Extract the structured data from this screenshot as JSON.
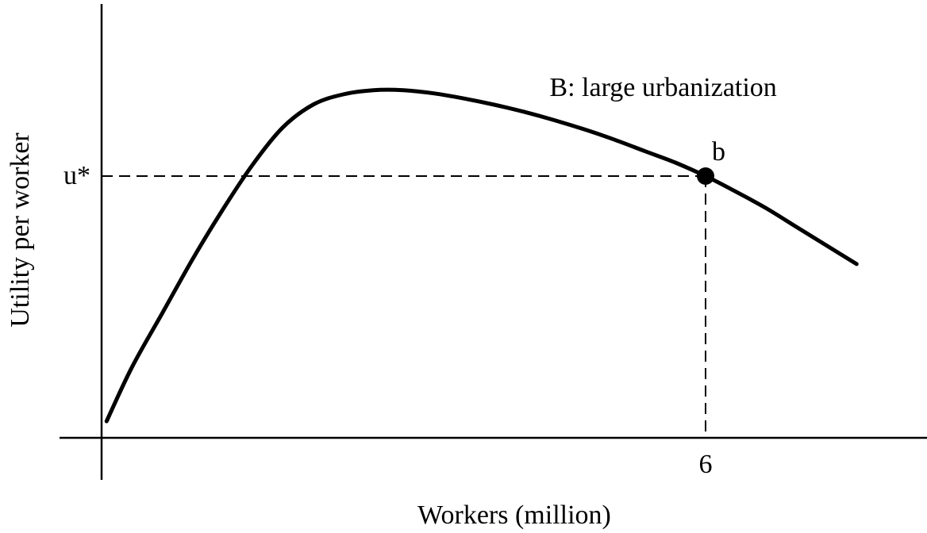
{
  "chart_data": {
    "type": "line",
    "xlabel": "Workers (million)",
    "ylabel": "Utility per worker",
    "series": [
      {
        "name": "B: large urbanization",
        "x": [
          0.05,
          0.3,
          0.6,
          0.9,
          1.2,
          1.5,
          1.8,
          2.1,
          2.4,
          2.7,
          3.0,
          3.3,
          3.6,
          3.9,
          4.2,
          4.5,
          4.8,
          5.1,
          5.4,
          5.7,
          6.0,
          6.3,
          6.6,
          6.9,
          7.2,
          7.5
        ],
        "y": [
          0.08,
          0.34,
          0.6,
          0.86,
          1.1,
          1.32,
          1.5,
          1.61,
          1.66,
          1.68,
          1.68,
          1.665,
          1.64,
          1.61,
          1.575,
          1.535,
          1.49,
          1.44,
          1.385,
          1.33,
          1.265,
          1.19,
          1.11,
          1.02,
          0.93,
          0.84
        ]
      }
    ],
    "point": {
      "label": "b",
      "x": 6,
      "y": 1.265
    },
    "x_ticks": [
      {
        "value": 6,
        "label": "6"
      }
    ],
    "y_ticks": [
      {
        "value": 1.265,
        "label": "u*"
      }
    ],
    "annotations": [
      {
        "text": "B: large urbanization",
        "x": 4.45,
        "y": 1.69
      }
    ],
    "xlim": [
      0,
      8
    ],
    "ylim": [
      0,
      1.8
    ],
    "grid": false
  }
}
